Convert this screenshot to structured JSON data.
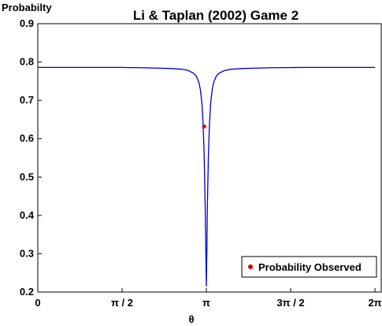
{
  "chart_data": {
    "type": "line",
    "title": "Li & Taplan (2002) Game 2",
    "xlabel": "θ",
    "ylabel": "Probabilty",
    "xlim": [
      0,
      6.4
    ],
    "ylim": [
      0.2,
      0.9
    ],
    "grid": false,
    "legend_position": "bottom-right",
    "x_ticks": [
      {
        "value": 0,
        "label": "0"
      },
      {
        "value": 1.5708,
        "label": "π / 2"
      },
      {
        "value": 3.1416,
        "label": "π"
      },
      {
        "value": 4.7124,
        "label": "3π / 2"
      },
      {
        "value": 6.2832,
        "label": "2π"
      }
    ],
    "y_ticks": [
      {
        "value": 0.2,
        "label": "0.2"
      },
      {
        "value": 0.3,
        "label": "0.3"
      },
      {
        "value": 0.4,
        "label": "0.4"
      },
      {
        "value": 0.5,
        "label": "0.5"
      },
      {
        "value": 0.6,
        "label": "0.6"
      },
      {
        "value": 0.7,
        "label": "0.7"
      },
      {
        "value": 0.8,
        "label": "0.8"
      },
      {
        "value": 0.9,
        "label": "0.9"
      }
    ],
    "series": [
      {
        "color": "#0000cc",
        "points": [
          [
            0.0,
            0.786
          ],
          [
            0.5,
            0.786
          ],
          [
            1.0,
            0.786
          ],
          [
            1.5,
            0.786
          ],
          [
            2.0,
            0.785
          ],
          [
            2.5,
            0.783
          ],
          [
            2.7,
            0.781
          ],
          [
            2.8,
            0.778
          ],
          [
            2.9,
            0.771
          ],
          [
            2.95,
            0.764
          ],
          [
            3.0,
            0.748
          ],
          [
            3.03,
            0.728
          ],
          [
            3.06,
            0.69
          ],
          [
            3.08,
            0.64
          ],
          [
            3.1,
            0.56
          ],
          [
            3.12,
            0.42
          ],
          [
            3.13,
            0.32
          ],
          [
            3.141,
            0.215
          ],
          [
            3.152,
            0.32
          ],
          [
            3.16,
            0.42
          ],
          [
            3.18,
            0.56
          ],
          [
            3.2,
            0.64
          ],
          [
            3.22,
            0.69
          ],
          [
            3.25,
            0.728
          ],
          [
            3.28,
            0.748
          ],
          [
            3.33,
            0.764
          ],
          [
            3.38,
            0.771
          ],
          [
            3.48,
            0.778
          ],
          [
            3.6,
            0.781
          ],
          [
            3.8,
            0.783
          ],
          [
            4.3,
            0.785
          ],
          [
            5.0,
            0.786
          ],
          [
            5.5,
            0.786
          ],
          [
            6.0,
            0.786
          ],
          [
            6.2832,
            0.786
          ]
        ]
      },
      {
        "name": "Probability Observed",
        "color": "#e00000",
        "marker": "dot",
        "points": [
          [
            3.1,
            0.632
          ]
        ]
      }
    ]
  }
}
